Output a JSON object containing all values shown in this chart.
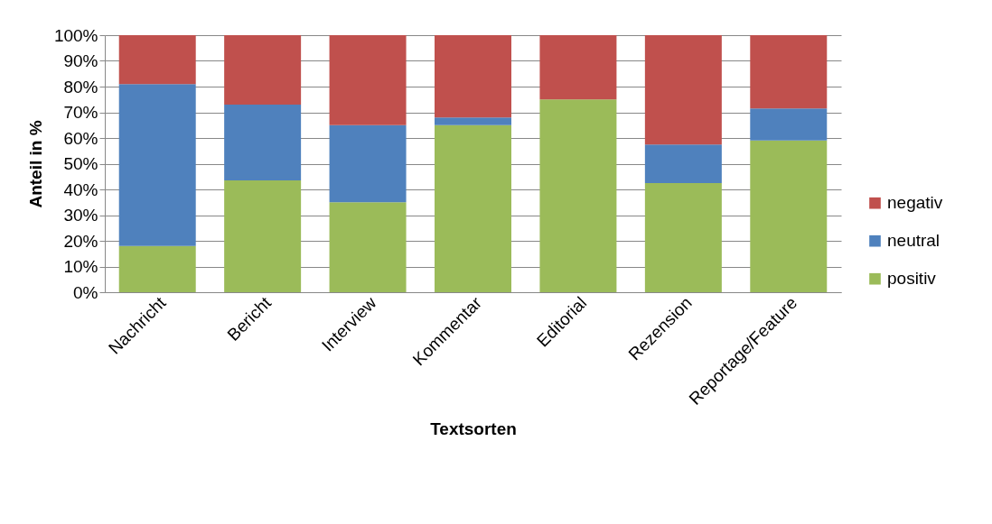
{
  "chart_data": {
    "type": "bar",
    "stacked": true,
    "xlabel": "Textsorten",
    "ylabel": "Anteil in %",
    "categories": [
      "Nachricht",
      "Bericht",
      "Interview",
      "Kommentar",
      "Editorial",
      "Rezension",
      "Reportage/Feature"
    ],
    "series": [
      {
        "name": "positiv",
        "color": "#9bbb59",
        "values": [
          18,
          43.5,
          35,
          65,
          75,
          42.5,
          59
        ]
      },
      {
        "name": "neutral",
        "color": "#4f81bd",
        "values": [
          63,
          29.5,
          30,
          3,
          0,
          15,
          12.5
        ]
      },
      {
        "name": "negativ",
        "color": "#c0504d",
        "values": [
          19,
          27,
          35,
          32,
          25,
          42.5,
          28.5
        ]
      }
    ],
    "ylim": [
      0,
      100
    ],
    "yticks": [
      {
        "value": 0,
        "label": "0%"
      },
      {
        "value": 10,
        "label": "10%"
      },
      {
        "value": 20,
        "label": "20%"
      },
      {
        "value": 30,
        "label": "30%"
      },
      {
        "value": 40,
        "label": "40%"
      },
      {
        "value": 50,
        "label": "50%"
      },
      {
        "value": 60,
        "label": "60%"
      },
      {
        "value": 70,
        "label": "70%"
      },
      {
        "value": 80,
        "label": "80%"
      },
      {
        "value": 90,
        "label": "90%"
      },
      {
        "value": 100,
        "label": "100%"
      }
    ],
    "grid": "y",
    "legend": "right"
  }
}
